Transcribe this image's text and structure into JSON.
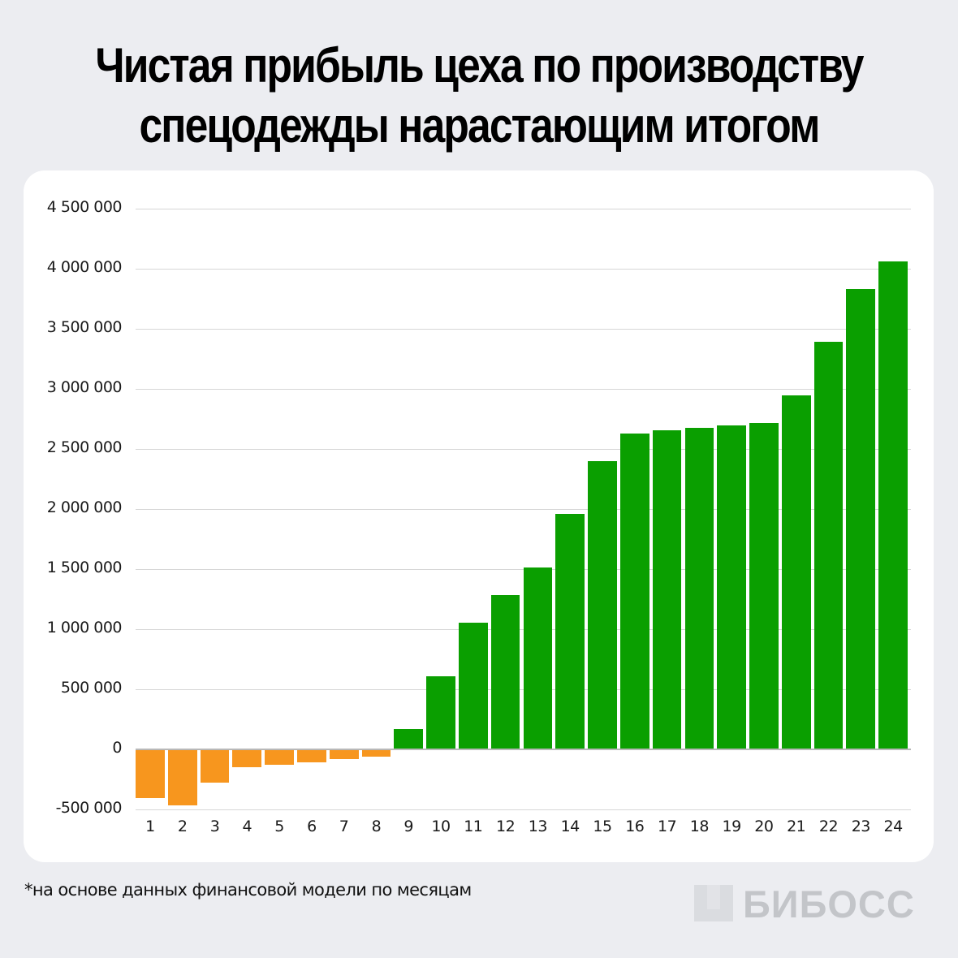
{
  "title": {
    "line1": "Чистая прибыль цеха по производству",
    "line2": "спецодежды нарастающим итогом"
  },
  "footnote": "*на основе данных финансовой модели по месяцам",
  "logo": {
    "text": "БИБОСС",
    "color": "#C3C5C9"
  },
  "colors": {
    "background": "#ECEDF1",
    "card": "#FFFFFF",
    "negative": "#F7961E",
    "positive": "#0A9F00",
    "grid": "#D6D6D6"
  },
  "chart_data": {
    "type": "bar",
    "title": "Чистая прибыль цеха по производству спецодежды нарастающим итогом",
    "xlabel": "",
    "ylabel": "",
    "categories": [
      "1",
      "2",
      "3",
      "4",
      "5",
      "6",
      "7",
      "8",
      "9",
      "10",
      "11",
      "12",
      "13",
      "14",
      "15",
      "16",
      "17",
      "18",
      "19",
      "20",
      "21",
      "22",
      "23",
      "24"
    ],
    "values": [
      -405000,
      -466000,
      -277000,
      -149000,
      -128000,
      -108000,
      -81000,
      -61000,
      169000,
      608000,
      1054000,
      1284000,
      1514000,
      1959000,
      2399000,
      2628000,
      2655000,
      2676000,
      2696000,
      2716000,
      2946000,
      3392000,
      3831000,
      4061000
    ],
    "ylim": [
      -500000,
      4500000
    ],
    "yticks": [
      -500000,
      0,
      500000,
      1000000,
      1500000,
      2000000,
      2500000,
      3000000,
      3500000,
      4000000,
      4500000
    ],
    "ytick_labels": [
      "-500 000",
      "0",
      "500 000",
      "1 000 000",
      "1 500 000",
      "2 000 000",
      "2 500 000",
      "3 000 000",
      "3 500 000",
      "4 000 000",
      "4 500 000"
    ],
    "grid": true,
    "legend": null,
    "color_rule": "negative values orange, positive values green",
    "note": "*на основе данных финансовой модели по месяцам"
  }
}
